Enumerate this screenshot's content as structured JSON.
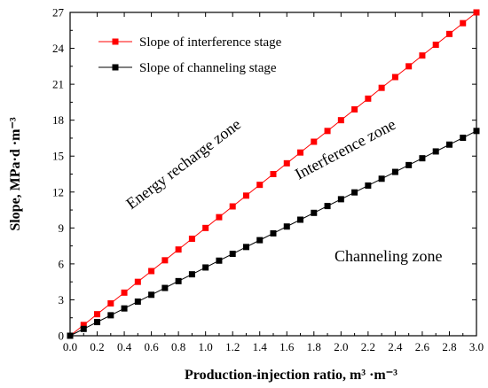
{
  "chart_data": {
    "type": "line",
    "xlabel": "Production-injection ratio, m³ ·m⁻³",
    "ylabel": "Slope, MPa·d ·m⁻³",
    "xlim": [
      0.0,
      3.0
    ],
    "ylim": [
      0,
      27
    ],
    "x_ticks": [
      "0.0",
      "0.2",
      "0.4",
      "0.6",
      "0.8",
      "1.0",
      "1.2",
      "1.4",
      "1.6",
      "1.8",
      "2.0",
      "2.2",
      "2.4",
      "2.6",
      "2.8",
      "3.0"
    ],
    "y_ticks": [
      "0",
      "3",
      "6",
      "9",
      "12",
      "15",
      "18",
      "21",
      "24",
      "27"
    ],
    "grid": false,
    "legend_position": "top-left",
    "x": [
      0.0,
      0.1,
      0.2,
      0.3,
      0.4,
      0.5,
      0.6,
      0.7,
      0.8,
      0.9,
      1.0,
      1.1,
      1.2,
      1.3,
      1.4,
      1.5,
      1.6,
      1.7,
      1.8,
      1.9,
      2.0,
      2.1,
      2.2,
      2.3,
      2.4,
      2.5,
      2.6,
      2.7,
      2.8,
      2.9,
      3.0
    ],
    "series": [
      {
        "name": "Slope of interference stage",
        "color": "#ff0000",
        "marker": "square",
        "values": [
          0.0,
          0.9,
          1.8,
          2.7,
          3.6,
          4.5,
          5.4,
          6.3,
          7.2,
          8.1,
          9.0,
          9.9,
          10.8,
          11.7,
          12.6,
          13.5,
          14.4,
          15.3,
          16.2,
          17.1,
          18.0,
          18.9,
          19.8,
          20.7,
          21.6,
          22.5,
          23.4,
          24.3,
          25.2,
          26.1,
          27.0
        ]
      },
      {
        "name": "Slope of channeling stage",
        "color": "#000000",
        "marker": "square",
        "values": [
          0.0,
          0.57,
          1.14,
          1.71,
          2.28,
          2.85,
          3.42,
          3.99,
          4.56,
          5.13,
          5.7,
          6.27,
          6.84,
          7.41,
          7.98,
          8.55,
          9.12,
          9.69,
          10.26,
          10.83,
          11.4,
          11.97,
          12.54,
          13.11,
          13.68,
          14.25,
          14.82,
          15.39,
          15.96,
          16.53,
          17.1
        ]
      }
    ],
    "annotations": [
      {
        "text": "Energy recharge zone",
        "x": 0.86,
        "y": 14.0,
        "angle_deg": -37
      },
      {
        "text": "Interference zone",
        "x": 2.05,
        "y": 15.2,
        "angle_deg": -28
      },
      {
        "text": "Channeling zone",
        "x": 2.35,
        "y": 6.2,
        "angle_deg": 0
      }
    ]
  }
}
